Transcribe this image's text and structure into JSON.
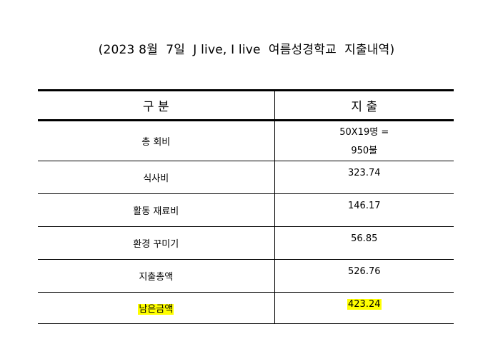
{
  "title": "(2023 8월  7일  J live, I live  여름성경학교  지출내역)",
  "table": {
    "headers": {
      "category": "구 분",
      "amount": "지 출"
    },
    "rows": [
      {
        "category": "총 회비",
        "amount_line1": "50X19명 =",
        "amount_line2": "950불"
      },
      {
        "category": "식사비",
        "amount": "323.74"
      },
      {
        "category": "활동  재료비",
        "amount": "146.17"
      },
      {
        "category": "환경  꾸미기",
        "amount": "56.85"
      },
      {
        "category": "지출총액",
        "amount": "526.76"
      },
      {
        "category": "남은금액",
        "amount": "423.24",
        "highlight_color": "#ffff00"
      }
    ]
  }
}
